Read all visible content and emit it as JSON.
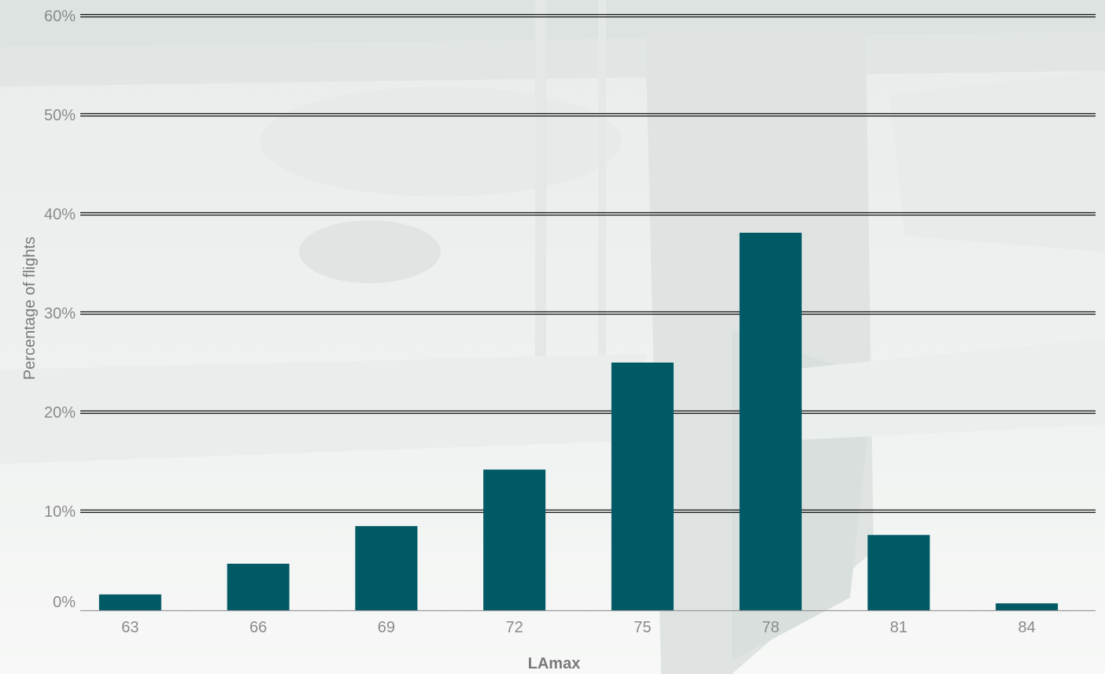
{
  "chart_data": {
    "type": "bar",
    "categories": [
      "63",
      "66",
      "69",
      "72",
      "75",
      "78",
      "81",
      "84"
    ],
    "values": [
      1.6,
      4.7,
      8.5,
      14.2,
      25.0,
      38.1,
      7.6,
      0.7
    ],
    "xlabel": "LAmax",
    "ylabel": "Percentage of flights",
    "ylim": [
      0,
      60
    ],
    "yticks": [
      "0%",
      "10%",
      "20%",
      "30%",
      "40%",
      "50%",
      "60%"
    ],
    "grid": true,
    "legend": "none",
    "bar_color": "#005a66",
    "grid_color": "#111111"
  }
}
